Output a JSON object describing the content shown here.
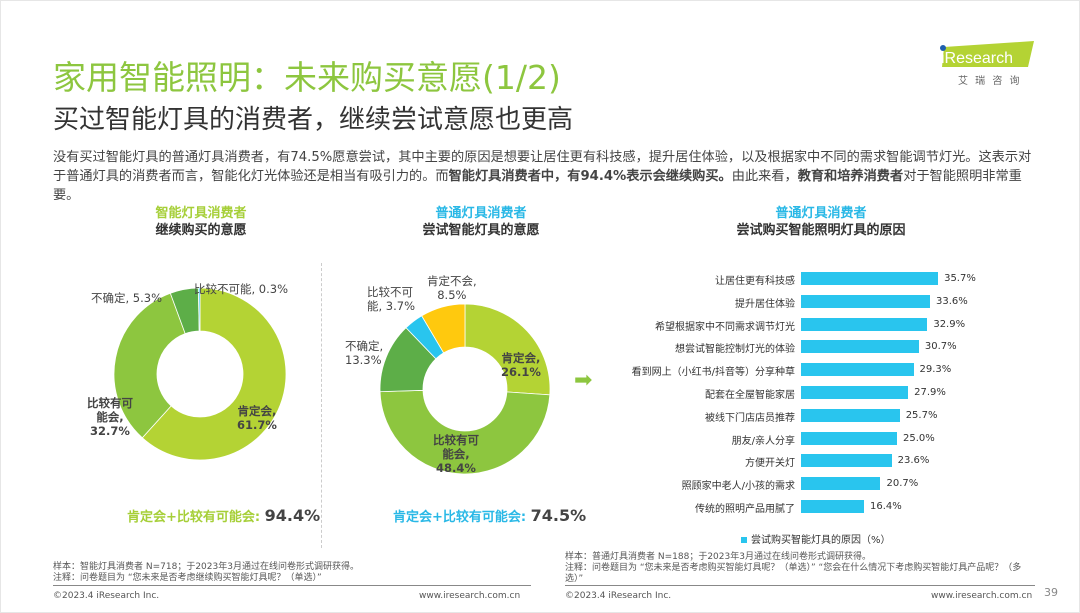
{
  "title": "家用智能照明：未来购买意愿(1/2)",
  "subtitle": "买过智能灯具的消费者，继续尝试意愿也更高",
  "logo": {
    "brand": "iResearch",
    "cn": "艾 瑞 咨 询"
  },
  "body": {
    "p1": "没有买过智能灯具的普通灯具消费者，有74.5%愿意尝试，其中主要的原因是想要让居住更有科技感，提升居住体验，以及根据家中不同的需求智能调节灯光。这表示对于普通灯具的消费者而言，智能化灯光体验还是相当有吸引力的。而",
    "b1": "智能灯具消费者中，有94.4%表示会继续购买。",
    "p2": "由此来看，",
    "b2": "教育和培养消费者",
    "p3": "对于智能照明非常重要。"
  },
  "colors": {
    "lime": "#b4d334",
    "green": "#8dc63f",
    "dark": "#5dae48",
    "cyan": "#29c5ee",
    "yellow": "#ffc90e"
  },
  "chart_data": [
    {
      "type": "pie",
      "title_group": "智能灯具消费者",
      "title": "继续购买的意愿",
      "labels": [
        "肯定会",
        "比较有可能会",
        "不确定",
        "比较不可能"
      ],
      "values": [
        61.7,
        32.7,
        5.3,
        0.3
      ],
      "label_text": [
        "肯定会,",
        "61.7%",
        "比较有可",
        "能会,",
        "32.7%",
        "不确定, 5.3%",
        "比较不可能, 0.3%"
      ],
      "summary_label": "肯定会+比较有可能会:",
      "summary_value": "94.4%"
    },
    {
      "type": "pie",
      "title_group": "普通灯具消费者",
      "title": "尝试智能灯具的意愿",
      "labels": [
        "肯定会",
        "比较有可能会",
        "不确定",
        "比较不可能",
        "肯定不会"
      ],
      "values": [
        26.1,
        48.4,
        13.3,
        3.7,
        8.5
      ],
      "label_text": [
        "肯定会,",
        "26.1%",
        "比较有可",
        "能会,",
        "48.4%",
        "不确定,",
        "13.3%",
        "比较不可",
        "能, 3.7%",
        "肯定不会,",
        "8.5%"
      ],
      "summary_label": "肯定会+比较有可能会:",
      "summary_value": "74.5%"
    },
    {
      "type": "bar",
      "title_group": "普通灯具消费者",
      "title": "尝试购买智能照明灯具的原因",
      "legend": "尝试购买智能灯具的原因（%）",
      "categories": [
        "让居住更有科技感",
        "提升居住体验",
        "希望根据家中不同需求调节灯光",
        "想尝试智能控制灯光的体验",
        "看到网上（小红书/抖音等）分享种草",
        "配套在全屋智能家居",
        "被线下门店店员推荐",
        "朋友/亲人分享",
        "方便开关灯",
        "照顾家中老人/小孩的需求",
        "传统的照明产品用腻了"
      ],
      "values": [
        35.7,
        33.6,
        32.9,
        30.7,
        29.3,
        27.9,
        25.7,
        25.0,
        23.6,
        20.7,
        16.4
      ],
      "value_labels": [
        "35.7%",
        "33.6%",
        "32.9%",
        "30.7%",
        "29.3%",
        "27.9%",
        "25.7%",
        "25.0%",
        "23.6%",
        "20.7%",
        "16.4%"
      ]
    }
  ],
  "notes": {
    "left1": "样本：智能灯具消费者 N=718；于2023年3月通过在线问卷形式调研获得。",
    "left2": "注释：问卷题目为 “您未来是否考虑继续购买智能灯具呢？（单选）”",
    "right1": "样本：普通灯具消费者 N=188；于2023年3月通过在线问卷形式调研获得。",
    "right2": "注释：问卷题目为 “您未来是否考虑购买智能灯具呢？（单选）” “您会在什么情况下考虑购买智能灯具产品呢？（多选）”"
  },
  "footer": {
    "copyright": "©2023.4 iResearch Inc.",
    "url": "www.iresearch.com.cn",
    "page": "39"
  }
}
